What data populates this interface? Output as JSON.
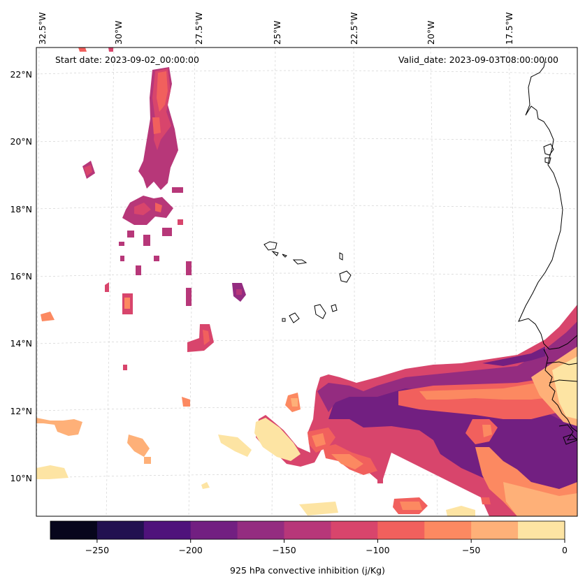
{
  "map": {
    "annotations": {
      "start_date": "Start date: 2023-09-02_00:00:00",
      "valid_date": "Valid_date: 2023-09-03T08:00:00.00"
    },
    "lon_labels": [
      "32.5°W",
      "30°W",
      "27.5°W",
      "25°W",
      "22.5°W",
      "20°W",
      "17.5°W"
    ],
    "lat_labels": [
      "22°N",
      "20°N",
      "18°N",
      "16°N",
      "14°N",
      "12°N",
      "10°N"
    ],
    "colorbar": {
      "label": "925 hPa convective inhibition (j/Kg)",
      "tick_labels": [
        "−250",
        "−200",
        "−150",
        "−100",
        "−50",
        "0"
      ],
      "min": -275,
      "max": 0,
      "colors": [
        "#07061c",
        "#221150",
        "#4f127b",
        "#721f81",
        "#942c80",
        "#b73779",
        "#d8456c",
        "#f1605d",
        "#fc8961",
        "#feb078",
        "#fde4a3"
      ]
    }
  }
}
